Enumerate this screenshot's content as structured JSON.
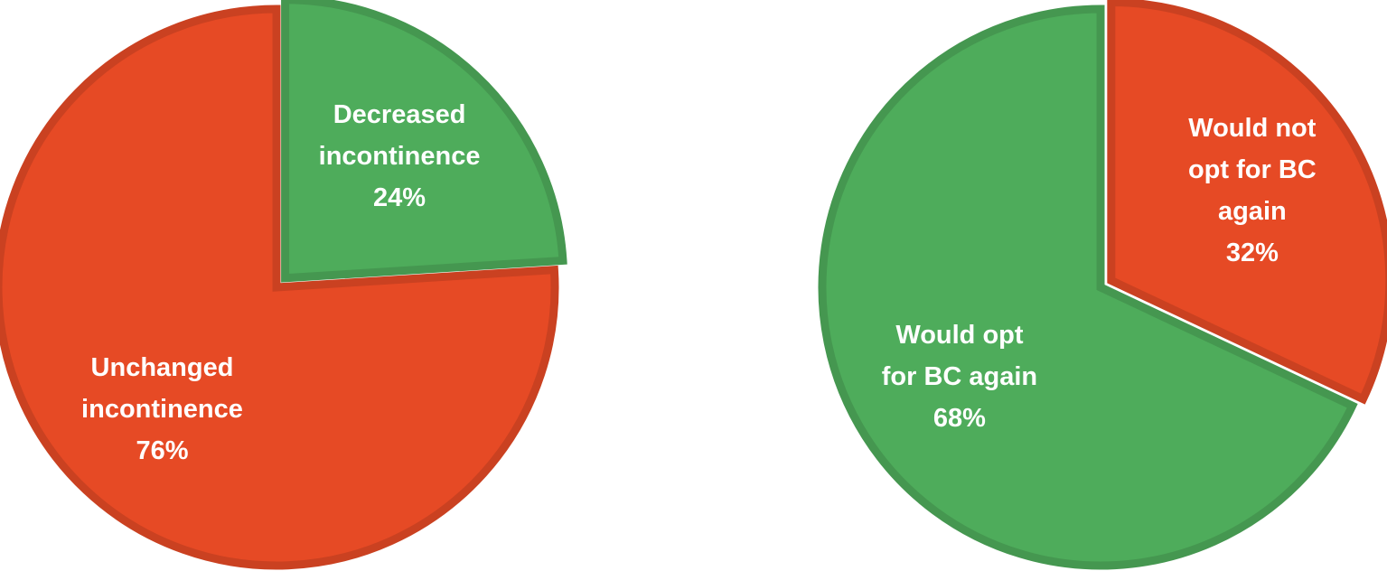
{
  "chart_data": [
    {
      "type": "pie",
      "categories": [
        "Decreased incontinence",
        "Unchanged incontinence"
      ],
      "values": [
        24,
        76
      ],
      "value_labels": [
        "24%",
        "76%"
      ],
      "colors": [
        "#4eac5b",
        "#e64a25"
      ]
    },
    {
      "type": "pie",
      "categories": [
        "Would not opt for BC again",
        "Would opt for BC again"
      ],
      "values": [
        32,
        68
      ],
      "value_labels": [
        "32%",
        "68%"
      ],
      "colors": [
        "#e64a25",
        "#4eac5b"
      ]
    }
  ]
}
